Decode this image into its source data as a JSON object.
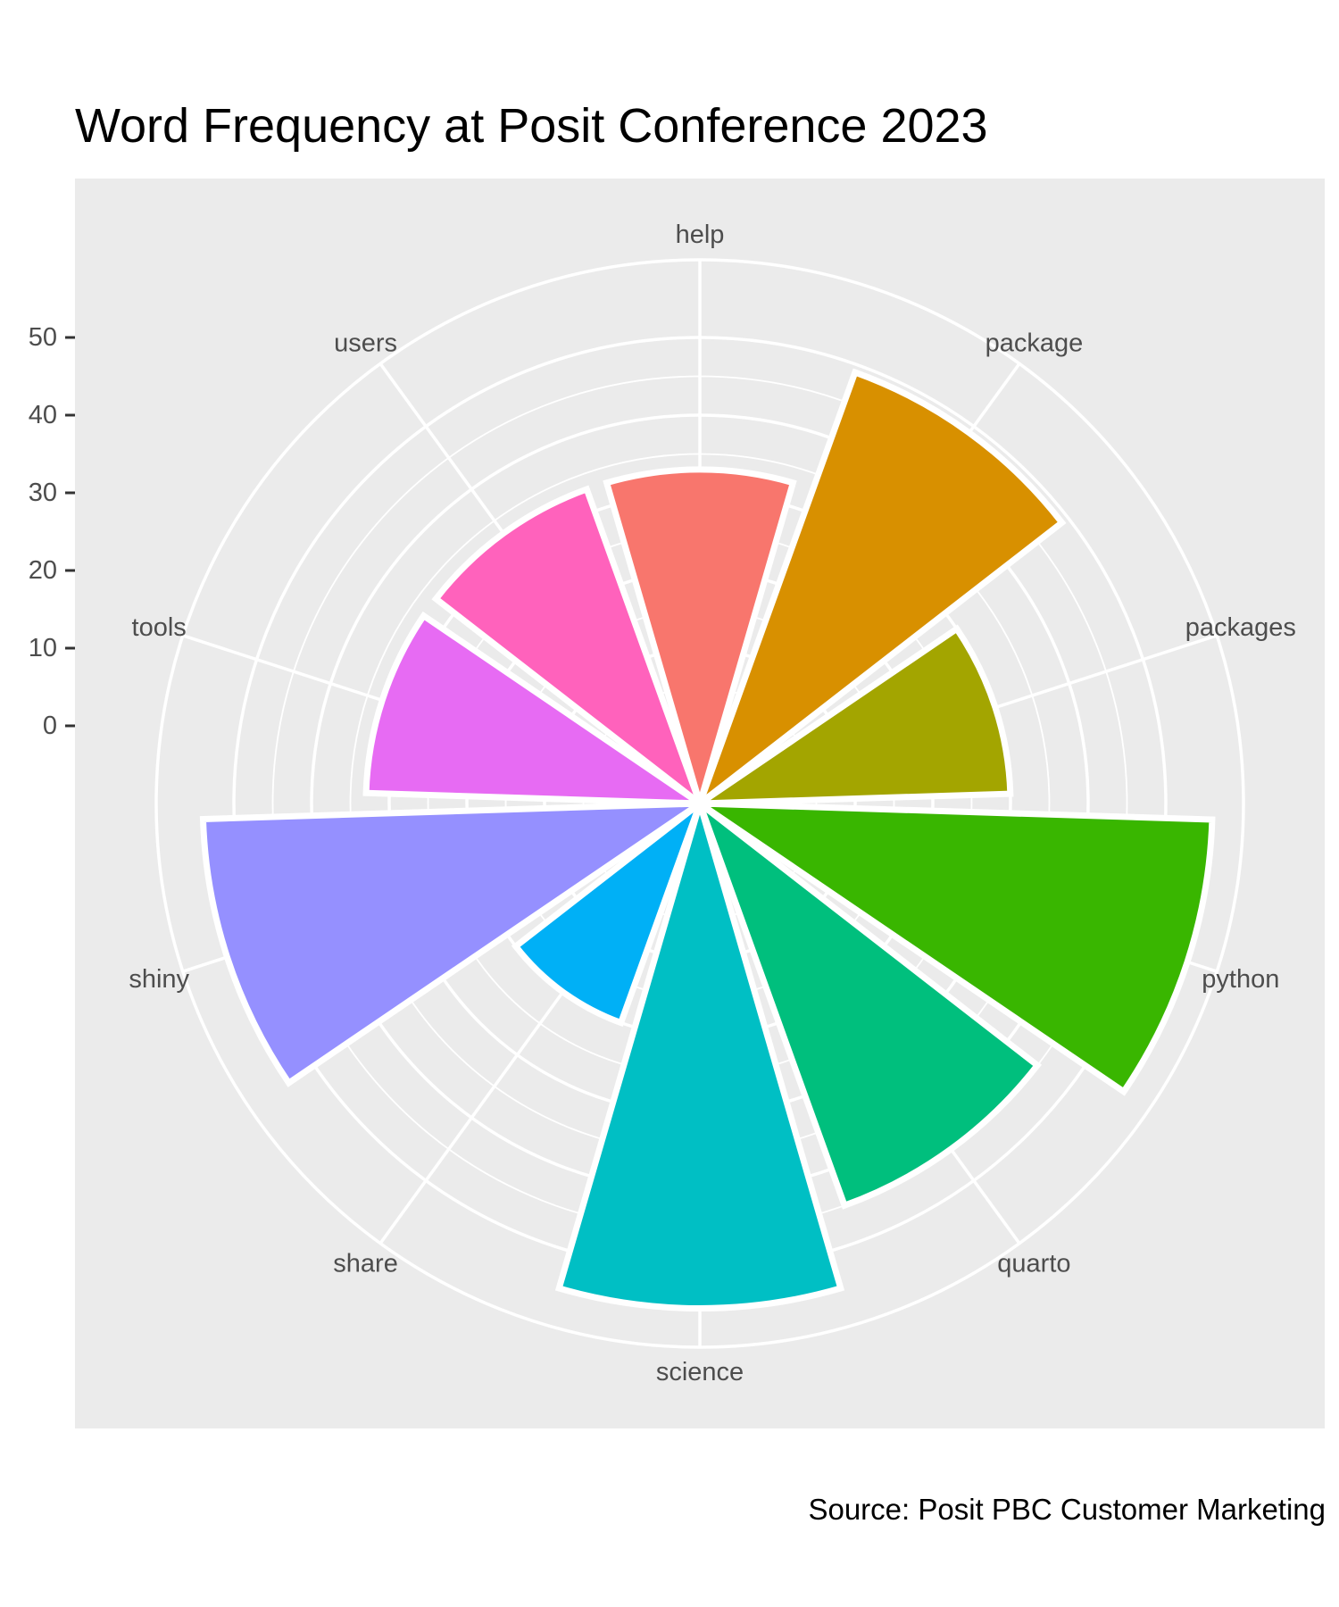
{
  "chart_data": {
    "type": "bar",
    "coord": "polar",
    "title": "Word Frequency at Posit Conference 2023",
    "caption": "Source: Posit PBC Customer Marketing",
    "categories": [
      "help",
      "package",
      "packages",
      "python",
      "quarto",
      "science",
      "share",
      "shiny",
      "tools",
      "users"
    ],
    "values": [
      33,
      49,
      30,
      56,
      45,
      55,
      20,
      54,
      33,
      33
    ],
    "colors": [
      "#F8766D",
      "#D89000",
      "#A3A500",
      "#39B600",
      "#00BF7D",
      "#00BFC4",
      "#00B0F6",
      "#9590FF",
      "#E76BF3",
      "#FF62BC"
    ],
    "ylim": [
      -10,
      60
    ],
    "y_ticks": [
      0,
      10,
      20,
      30,
      40,
      50
    ],
    "panel_background": "#EBEBEB",
    "grid_color": "#FFFFFF",
    "bar_outline": "#FFFFFF",
    "legend": "none"
  }
}
